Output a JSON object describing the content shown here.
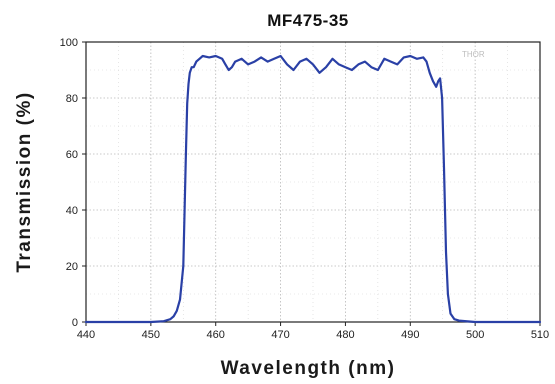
{
  "chart_data": {
    "type": "line",
    "title": "MF475-35",
    "xlabel": "Wavelength (nm)",
    "ylabel": "Transmission (%)",
    "xlim": [
      440,
      510
    ],
    "ylim": [
      0,
      100
    ],
    "x_ticks": [
      440,
      450,
      460,
      470,
      480,
      490,
      500,
      510
    ],
    "y_ticks": [
      0,
      20,
      40,
      60,
      80,
      100
    ],
    "grid": "dotted",
    "watermark": "THOR",
    "line_color": "#2a40a6",
    "series": [
      {
        "x": [
          440,
          450,
          452,
          453,
          453.5,
          454,
          454.5,
          455,
          455.2,
          455.4,
          455.6,
          455.8,
          456,
          456.3,
          456.6,
          457,
          457.5,
          458,
          459,
          460,
          461,
          461.5,
          462,
          462.5,
          463,
          464,
          465,
          466,
          467,
          468,
          469,
          470,
          471,
          472,
          473,
          474,
          475,
          476,
          477,
          478,
          479,
          480,
          481,
          482,
          483,
          484,
          485,
          486,
          487,
          488,
          489,
          490,
          491,
          492,
          492.5,
          493,
          493.5,
          494,
          494.3,
          494.6,
          494.9,
          495.2,
          495.5,
          495.8,
          496.2,
          496.8,
          497.5,
          500,
          510
        ],
        "y": [
          0,
          0,
          0.3,
          1,
          2,
          4,
          8,
          20,
          40,
          60,
          78,
          85,
          89,
          91,
          91,
          93,
          94,
          95,
          94.5,
          95,
          94,
          92,
          90,
          91,
          93,
          94,
          92,
          93,
          94.5,
          93,
          94,
          95,
          92,
          90,
          93,
          94,
          92,
          89,
          91,
          94,
          92,
          91,
          90,
          92,
          93,
          91,
          90,
          94,
          93,
          92,
          94.5,
          95,
          94,
          94.5,
          93,
          89,
          86,
          84,
          86,
          87,
          80,
          55,
          25,
          10,
          3,
          1,
          0.5,
          0,
          0
        ]
      }
    ]
  }
}
